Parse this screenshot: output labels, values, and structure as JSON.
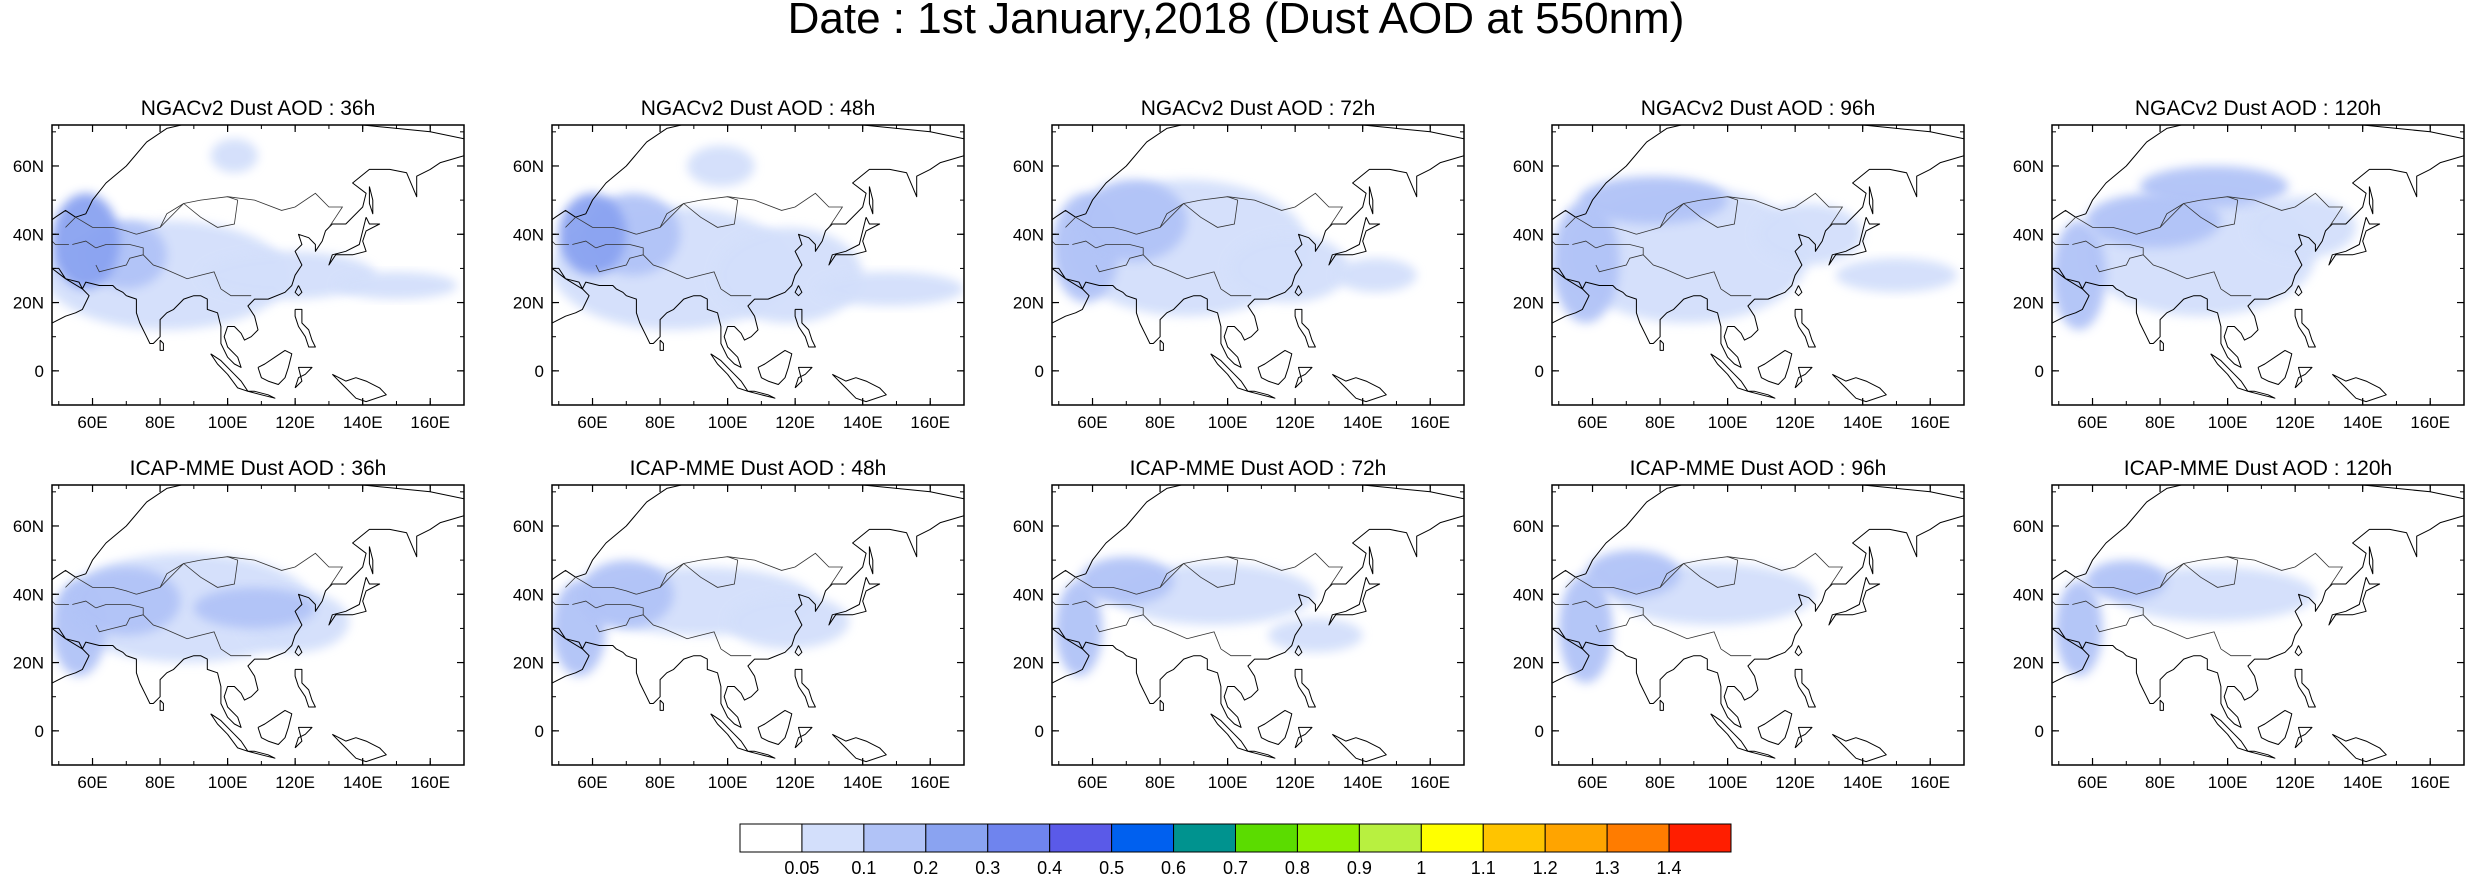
{
  "figure": {
    "title": "Date : 1st January,2018 (Dust AOD at 550nm)"
  },
  "axes": {
    "lat_ticks": [
      "60N",
      "40N",
      "20N",
      "0"
    ],
    "lat_values": [
      60,
      40,
      20,
      0
    ],
    "lon_ticks": [
      "60E",
      "80E",
      "100E",
      "120E",
      "140E",
      "160E"
    ],
    "lon_values": [
      60,
      80,
      100,
      120,
      140,
      160
    ],
    "lon_range": [
      48,
      170
    ],
    "lat_range": [
      -10,
      72
    ]
  },
  "colorbar": {
    "colors": [
      "#ffffff",
      "#d3dffb",
      "#b1c3f7",
      "#8aa3f1",
      "#6f84ee",
      "#5a5ae8",
      "#0060ef",
      "#00938f",
      "#5bdc00",
      "#8ef000",
      "#b8f040",
      "#ffff00",
      "#ffc400",
      "#ffa400",
      "#ff7c00",
      "#ff1e00"
    ],
    "labels": [
      "0.05",
      "0.1",
      "0.2",
      "0.3",
      "0.4",
      "0.5",
      "0.6",
      "0.7",
      "0.8",
      "0.9",
      "1",
      "1.1",
      "1.2",
      "1.3",
      "1.4"
    ]
  },
  "panels": [
    {
      "title": "NGACv2 Dust AOD : 36h",
      "blobs": [
        {
          "lon": 58,
          "lat": 38,
          "rx": 10,
          "ry": 14,
          "level": 3
        },
        {
          "lon": 70,
          "lat": 34,
          "rx": 12,
          "ry": 10,
          "level": 2
        },
        {
          "lon": 82,
          "lat": 28,
          "rx": 36,
          "ry": 16,
          "level": 1
        },
        {
          "lon": 118,
          "lat": 28,
          "rx": 26,
          "ry": 7,
          "level": 1
        },
        {
          "lon": 150,
          "lat": 25,
          "rx": 18,
          "ry": 4,
          "level": 1
        },
        {
          "lon": 102,
          "lat": 63,
          "rx": 7,
          "ry": 5,
          "level": 1
        }
      ]
    },
    {
      "title": "NGACv2 Dust AOD : 48h",
      "blobs": [
        {
          "lon": 60,
          "lat": 40,
          "rx": 10,
          "ry": 12,
          "level": 3
        },
        {
          "lon": 72,
          "lat": 40,
          "rx": 14,
          "ry": 12,
          "level": 2
        },
        {
          "lon": 84,
          "lat": 30,
          "rx": 36,
          "ry": 18,
          "level": 1
        },
        {
          "lon": 118,
          "lat": 28,
          "rx": 22,
          "ry": 14,
          "level": 1
        },
        {
          "lon": 148,
          "lat": 24,
          "rx": 22,
          "ry": 5,
          "level": 1
        },
        {
          "lon": 98,
          "lat": 60,
          "rx": 10,
          "ry": 6,
          "level": 1
        }
      ]
    },
    {
      "title": "NGACv2 Dust AOD : 72h",
      "blobs": [
        {
          "lon": 58,
          "lat": 36,
          "rx": 10,
          "ry": 16,
          "level": 2
        },
        {
          "lon": 72,
          "lat": 44,
          "rx": 16,
          "ry": 12,
          "level": 2
        },
        {
          "lon": 88,
          "lat": 36,
          "rx": 36,
          "ry": 20,
          "level": 1
        },
        {
          "lon": 118,
          "lat": 30,
          "rx": 18,
          "ry": 10,
          "level": 1
        },
        {
          "lon": 144,
          "lat": 28,
          "rx": 12,
          "ry": 5,
          "level": 1
        }
      ]
    },
    {
      "title": "NGACv2 Dust AOD : 96h",
      "blobs": [
        {
          "lon": 58,
          "lat": 32,
          "rx": 10,
          "ry": 18,
          "level": 2
        },
        {
          "lon": 78,
          "lat": 50,
          "rx": 22,
          "ry": 7,
          "level": 2
        },
        {
          "lon": 88,
          "lat": 34,
          "rx": 36,
          "ry": 20,
          "level": 1
        },
        {
          "lon": 124,
          "lat": 40,
          "rx": 16,
          "ry": 9,
          "level": 1
        },
        {
          "lon": 150,
          "lat": 28,
          "rx": 18,
          "ry": 5,
          "level": 1
        }
      ]
    },
    {
      "title": "NGACv2 Dust AOD : 120h",
      "blobs": [
        {
          "lon": 56,
          "lat": 28,
          "rx": 8,
          "ry": 16,
          "level": 2
        },
        {
          "lon": 78,
          "lat": 44,
          "rx": 20,
          "ry": 8,
          "level": 2
        },
        {
          "lon": 96,
          "lat": 54,
          "rx": 22,
          "ry": 6,
          "level": 2
        },
        {
          "lon": 92,
          "lat": 34,
          "rx": 34,
          "ry": 18,
          "level": 1
        },
        {
          "lon": 122,
          "lat": 42,
          "rx": 16,
          "ry": 9,
          "level": 1
        }
      ]
    },
    {
      "title": "ICAP-MME Dust AOD : 36h",
      "blobs": [
        {
          "lon": 56,
          "lat": 30,
          "rx": 8,
          "ry": 14,
          "level": 2
        },
        {
          "lon": 70,
          "lat": 38,
          "rx": 16,
          "ry": 10,
          "level": 2
        },
        {
          "lon": 108,
          "lat": 36,
          "rx": 18,
          "ry": 6,
          "level": 2
        },
        {
          "lon": 88,
          "lat": 36,
          "rx": 38,
          "ry": 16,
          "level": 1
        },
        {
          "lon": 120,
          "lat": 32,
          "rx": 16,
          "ry": 9,
          "level": 1
        }
      ]
    },
    {
      "title": "ICAP-MME Dust AOD : 48h",
      "blobs": [
        {
          "lon": 56,
          "lat": 30,
          "rx": 8,
          "ry": 14,
          "level": 2
        },
        {
          "lon": 70,
          "lat": 40,
          "rx": 14,
          "ry": 10,
          "level": 2
        },
        {
          "lon": 92,
          "lat": 38,
          "rx": 34,
          "ry": 10,
          "level": 1
        },
        {
          "lon": 118,
          "lat": 32,
          "rx": 18,
          "ry": 8,
          "level": 1
        }
      ]
    },
    {
      "title": "ICAP-MME Dust AOD : 72h",
      "blobs": [
        {
          "lon": 56,
          "lat": 30,
          "rx": 7,
          "ry": 14,
          "level": 2
        },
        {
          "lon": 70,
          "lat": 44,
          "rx": 14,
          "ry": 7,
          "level": 2
        },
        {
          "lon": 96,
          "lat": 40,
          "rx": 30,
          "ry": 9,
          "level": 1
        },
        {
          "lon": 126,
          "lat": 28,
          "rx": 14,
          "ry": 5,
          "level": 1
        }
      ]
    },
    {
      "title": "ICAP-MME Dust AOD : 96h",
      "blobs": [
        {
          "lon": 58,
          "lat": 30,
          "rx": 8,
          "ry": 16,
          "level": 2
        },
        {
          "lon": 72,
          "lat": 46,
          "rx": 14,
          "ry": 7,
          "level": 2
        },
        {
          "lon": 96,
          "lat": 40,
          "rx": 30,
          "ry": 9,
          "level": 1
        }
      ]
    },
    {
      "title": "ICAP-MME Dust AOD : 120h",
      "blobs": [
        {
          "lon": 56,
          "lat": 30,
          "rx": 7,
          "ry": 14,
          "level": 2
        },
        {
          "lon": 70,
          "lat": 44,
          "rx": 12,
          "ry": 6,
          "level": 2
        },
        {
          "lon": 96,
          "lat": 40,
          "rx": 30,
          "ry": 8,
          "level": 1
        }
      ]
    }
  ],
  "coastline": {
    "asia_outline": [
      [
        48,
        30
      ],
      [
        52,
        27
      ],
      [
        56,
        26
      ],
      [
        57,
        24
      ],
      [
        59,
        22
      ],
      [
        57,
        18
      ],
      [
        55,
        17
      ],
      [
        52,
        16
      ],
      [
        48,
        14
      ],
      [
        44,
        12
      ],
      [
        43,
        13
      ],
      [
        42,
        16
      ],
      [
        39,
        21
      ],
      [
        35,
        28
      ],
      [
        34,
        31
      ],
      [
        35,
        34
      ],
      [
        36,
        36
      ],
      [
        40,
        38
      ],
      [
        45,
        42
      ],
      [
        49,
        45
      ],
      [
        52,
        47
      ],
      [
        55,
        45
      ],
      [
        58,
        46
      ],
      [
        60,
        50
      ],
      [
        64,
        55
      ],
      [
        70,
        60
      ],
      [
        76,
        67
      ],
      [
        82,
        71
      ],
      [
        95,
        74
      ],
      [
        105,
        76
      ],
      [
        112,
        74
      ],
      [
        125,
        73
      ],
      [
        140,
        72
      ],
      [
        150,
        71
      ],
      [
        160,
        70
      ],
      [
        170,
        68
      ],
      [
        175,
        66
      ],
      [
        170,
        63
      ],
      [
        163,
        61
      ],
      [
        160,
        59
      ],
      [
        156,
        57
      ],
      [
        156,
        51
      ],
      [
        153,
        58
      ],
      [
        148,
        59
      ],
      [
        142,
        59
      ],
      [
        137,
        55
      ],
      [
        141,
        52
      ],
      [
        140,
        48
      ],
      [
        135,
        43
      ],
      [
        131,
        43
      ],
      [
        129,
        41
      ],
      [
        128,
        38
      ],
      [
        126,
        35
      ],
      [
        126,
        37
      ],
      [
        124,
        39
      ],
      [
        121,
        40
      ],
      [
        122,
        37
      ],
      [
        120,
        35
      ],
      [
        122,
        31
      ],
      [
        120,
        28
      ],
      [
        119,
        25
      ],
      [
        117,
        23
      ],
      [
        112,
        21
      ],
      [
        110,
        21
      ],
      [
        108,
        21
      ],
      [
        106,
        19
      ],
      [
        108,
        16
      ],
      [
        109,
        12
      ],
      [
        107,
        10
      ],
      [
        105,
        9
      ],
      [
        104,
        11
      ],
      [
        102,
        13
      ],
      [
        100,
        13
      ],
      [
        99,
        10
      ],
      [
        100,
        7
      ],
      [
        103,
        4
      ],
      [
        104,
        1
      ],
      [
        102,
        2
      ],
      [
        100,
        4
      ],
      [
        98,
        8
      ],
      [
        98,
        13
      ],
      [
        97,
        17
      ],
      [
        94,
        18
      ],
      [
        94,
        21
      ],
      [
        92,
        22
      ],
      [
        90,
        22
      ],
      [
        87,
        21
      ],
      [
        86,
        20
      ],
      [
        84,
        18
      ],
      [
        82,
        17
      ],
      [
        80,
        15
      ],
      [
        80,
        10
      ],
      [
        78,
        8
      ],
      [
        77,
        8
      ],
      [
        76,
        10
      ],
      [
        74,
        14
      ],
      [
        73,
        17
      ],
      [
        73,
        21
      ],
      [
        70,
        22
      ],
      [
        69,
        23
      ],
      [
        67,
        24
      ],
      [
        66,
        25
      ],
      [
        62,
        25
      ],
      [
        58,
        26
      ],
      [
        57,
        24
      ],
      [
        52,
        27
      ],
      [
        50,
        30
      ],
      [
        48,
        30
      ]
    ],
    "islands": [
      [
        [
          141,
          45
        ],
        [
          142,
          43
        ],
        [
          145,
          43
        ],
        [
          141,
          41
        ],
        [
          140,
          38
        ],
        [
          141,
          35
        ],
        [
          137,
          34
        ],
        [
          132,
          34
        ],
        [
          130,
          31
        ],
        [
          131,
          34
        ],
        [
          135,
          35
        ],
        [
          139,
          37
        ],
        [
          140,
          41
        ],
        [
          141,
          45
        ]
      ],
      [
        [
          106,
          -6
        ],
        [
          110,
          -7
        ],
        [
          114,
          -8
        ],
        [
          112,
          -7
        ],
        [
          108,
          -6
        ],
        [
          106,
          -6
        ]
      ],
      [
        [
          95,
          5
        ],
        [
          98,
          3
        ],
        [
          102,
          -1
        ],
        [
          104,
          -3
        ],
        [
          106,
          -6
        ],
        [
          103,
          -5
        ],
        [
          100,
          -1
        ],
        [
          97,
          2
        ],
        [
          95,
          5
        ]
      ],
      [
        [
          109,
          1
        ],
        [
          111,
          2
        ],
        [
          114,
          4
        ],
        [
          117,
          6
        ],
        [
          119,
          5
        ],
        [
          118,
          1
        ],
        [
          117,
          -2
        ],
        [
          115,
          -4
        ],
        [
          112,
          -3
        ],
        [
          110,
          -2
        ],
        [
          109,
          1
        ]
      ],
      [
        [
          120,
          -5
        ],
        [
          121,
          -2
        ],
        [
          123,
          -1
        ],
        [
          125,
          1
        ],
        [
          121,
          1
        ],
        [
          122,
          -3
        ],
        [
          120,
          -5
        ]
      ],
      [
        [
          120,
          18
        ],
        [
          122,
          18
        ],
        [
          122,
          14
        ],
        [
          124,
          12
        ],
        [
          125,
          9
        ],
        [
          126,
          7
        ],
        [
          124,
          7
        ],
        [
          123,
          10
        ],
        [
          121,
          13
        ],
        [
          120,
          16
        ],
        [
          120,
          18
        ]
      ],
      [
        [
          121,
          25
        ],
        [
          122,
          23
        ],
        [
          121,
          22
        ],
        [
          120,
          23
        ],
        [
          121,
          25
        ]
      ],
      [
        [
          80,
          9
        ],
        [
          81,
          8
        ],
        [
          81,
          6
        ],
        [
          80,
          6
        ],
        [
          80,
          9
        ]
      ],
      [
        [
          131,
          -1
        ],
        [
          135,
          -3
        ],
        [
          138,
          -2
        ],
        [
          141,
          -3
        ],
        [
          145,
          -5
        ],
        [
          147,
          -7
        ],
        [
          141,
          -9
        ],
        [
          138,
          -8
        ],
        [
          134,
          -4
        ],
        [
          131,
          -1
        ]
      ],
      [
        [
          142,
          54
        ],
        [
          143,
          50
        ],
        [
          143,
          46
        ],
        [
          142,
          49
        ],
        [
          142,
          54
        ]
      ]
    ],
    "borders": [
      [
        [
          73,
          40
        ],
        [
          80,
          42
        ],
        [
          87,
          49
        ],
        [
          92,
          50
        ],
        [
          100,
          51
        ],
        [
          108,
          50
        ],
        [
          116,
          47
        ],
        [
          120,
          48
        ],
        [
          126,
          52
        ],
        [
          130,
          48
        ],
        [
          134,
          48
        ],
        [
          132,
          45
        ],
        [
          130,
          42
        ]
      ],
      [
        [
          52,
          42
        ],
        [
          55,
          45
        ],
        [
          60,
          42
        ],
        [
          66,
          42
        ],
        [
          70,
          41
        ],
        [
          73,
          40
        ]
      ],
      [
        [
          61,
          36
        ],
        [
          64,
          37
        ],
        [
          68,
          37
        ],
        [
          71,
          37
        ],
        [
          75,
          36
        ],
        [
          75,
          34
        ],
        [
          71,
          33
        ],
        [
          70,
          31
        ],
        [
          66,
          30
        ],
        [
          62,
          29
        ],
        [
          61,
          31
        ]
      ],
      [
        [
          75,
          34
        ],
        [
          78,
          31
        ],
        [
          81,
          30
        ],
        [
          88,
          27
        ],
        [
          92,
          28
        ],
        [
          96,
          29
        ],
        [
          98,
          24
        ]
      ],
      [
        [
          98,
          24
        ],
        [
          101,
          22
        ],
        [
          104,
          22
        ],
        [
          107,
          22
        ]
      ],
      [
        [
          54,
          37
        ],
        [
          58,
          38
        ],
        [
          61,
          36
        ]
      ],
      [
        [
          87,
          49
        ],
        [
          82,
          46
        ],
        [
          80,
          42
        ]
      ],
      [
        [
          100,
          51
        ],
        [
          103,
          50
        ],
        [
          102,
          43
        ],
        [
          97,
          42
        ],
        [
          92,
          45
        ],
        [
          87,
          49
        ]
      ],
      [
        [
          46,
          39
        ],
        [
          48,
          38
        ],
        [
          49,
          37
        ],
        [
          53,
          37
        ]
      ]
    ]
  }
}
